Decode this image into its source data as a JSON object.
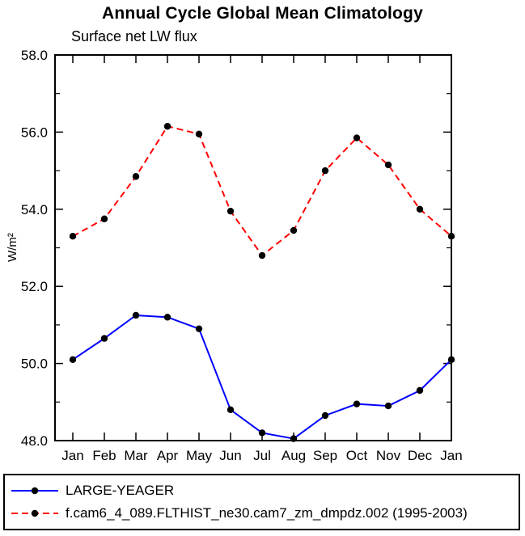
{
  "chart_data": {
    "type": "line",
    "title": "Annual Cycle Global Mean Climatology",
    "subtitle": "Surface net LW flux",
    "ylabel": "W/m²",
    "xlabel": "",
    "ylim": [
      48.0,
      58.0
    ],
    "yticks": [
      48.0,
      50.0,
      52.0,
      54.0,
      56.0,
      58.0
    ],
    "minor_yticks": [
      49.0,
      51.0,
      53.0,
      55.0,
      57.0
    ],
    "categories": [
      "Jan",
      "Feb",
      "Mar",
      "Apr",
      "May",
      "Jun",
      "Jul",
      "Aug",
      "Sep",
      "Oct",
      "Nov",
      "Dec",
      "Jan"
    ],
    "grid": false,
    "legend_position": "bottom",
    "axis_color": "#000000",
    "marker_color": "#000000",
    "series": [
      {
        "name": "LARGE-YEAGER",
        "color": "#0000ff",
        "style": "solid",
        "values": [
          50.1,
          50.65,
          51.25,
          51.2,
          50.9,
          48.8,
          48.2,
          48.05,
          48.65,
          48.95,
          48.9,
          49.3,
          50.1
        ]
      },
      {
        "name": "f.cam6_4_089.FLTHIST_ne30.cam7_zm_dmpdz.002 (1995-2003)",
        "color": "#ff0000",
        "style": "dashed",
        "values": [
          53.3,
          53.75,
          54.85,
          56.15,
          55.95,
          53.95,
          52.8,
          53.45,
          55.0,
          55.85,
          55.15,
          54.0,
          53.3
        ]
      }
    ]
  }
}
